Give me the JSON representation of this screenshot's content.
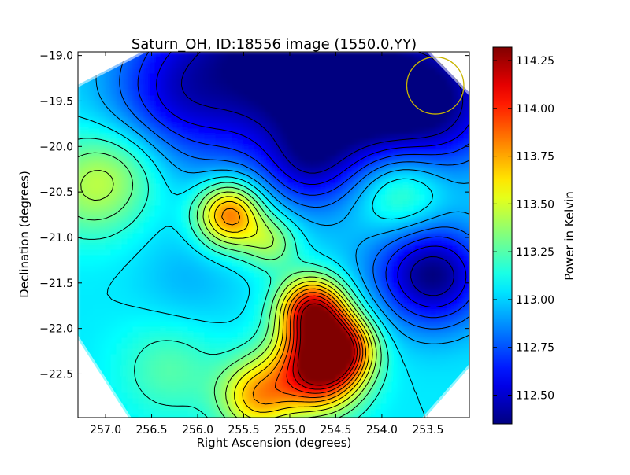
{
  "chart_data": {
    "type": "heatmap",
    "title": "Saturn_OH, ID:18556 image (1550.0,YY)",
    "xlabel": "Right Ascension (degrees)",
    "ylabel": "Declination (degrees)",
    "x_inverted": true,
    "xlim": [
      257.3,
      253.05
    ],
    "ylim": [
      -22.98,
      -18.96
    ],
    "x_ticks": [
      257.0,
      256.5,
      256.0,
      255.5,
      255.0,
      254.5,
      254.0,
      253.5
    ],
    "x_tick_labels": [
      "257.0",
      "256.5",
      "256.0",
      "255.5",
      "255.0",
      "254.5",
      "254.0",
      "253.5"
    ],
    "y_ticks": [
      -19.0,
      -19.5,
      -20.0,
      -20.5,
      -21.0,
      -21.5,
      -22.0,
      -22.5
    ],
    "y_tick_labels": [
      "−19.0",
      "−19.5",
      "−20.0",
      "−20.5",
      "−21.0",
      "−21.5",
      "−22.0",
      "−22.5"
    ],
    "colormap": "jet",
    "contours": true,
    "colorbar": {
      "label": "Power in Kelvin",
      "range": [
        112.35,
        114.32
      ],
      "ticks": [
        112.5,
        112.75,
        113.0,
        113.25,
        113.5,
        113.75,
        114.0,
        114.25
      ],
      "tick_labels": [
        "112.50",
        "112.75",
        "113.00",
        "113.25",
        "113.50",
        "113.75",
        "114.00",
        "114.25"
      ]
    },
    "background_level": 113.05,
    "field_features": [
      {
        "ra": 255.2,
        "dec": -18.96,
        "value": 112.38,
        "width": 1.2
      },
      {
        "ra": 254.15,
        "dec": -19.55,
        "value": 112.5,
        "width": 0.95
      },
      {
        "ra": 253.35,
        "dec": -19.5,
        "value": 112.6,
        "width": 0.7
      },
      {
        "ra": 256.3,
        "dec": -19.45,
        "value": 112.75,
        "width": 0.7
      },
      {
        "ra": 254.8,
        "dec": -20.2,
        "value": 112.8,
        "width": 0.45
      },
      {
        "ra": 253.35,
        "dec": -21.45,
        "value": 112.6,
        "width": 0.55
      },
      {
        "ra": 253.65,
        "dec": -21.35,
        "value": 112.75,
        "width": 0.6
      },
      {
        "ra": 257.15,
        "dec": -20.45,
        "value": 113.4,
        "width": 0.55
      },
      {
        "ra": 256.75,
        "dec": -20.2,
        "value": 113.2,
        "width": 0.5
      },
      {
        "ra": 253.8,
        "dec": -20.5,
        "value": 113.45,
        "width": 0.5
      },
      {
        "ra": 255.65,
        "dec": -20.75,
        "value": 113.9,
        "width": 0.35
      },
      {
        "ra": 255.2,
        "dec": -21.05,
        "value": 113.4,
        "width": 0.3
      },
      {
        "ra": 254.75,
        "dec": -21.8,
        "value": 114.15,
        "width": 0.35
      },
      {
        "ra": 254.7,
        "dec": -22.45,
        "value": 114.25,
        "width": 0.45
      },
      {
        "ra": 254.45,
        "dec": -22.2,
        "value": 113.95,
        "width": 0.35
      },
      {
        "ra": 255.35,
        "dec": -22.75,
        "value": 113.7,
        "width": 0.4
      },
      {
        "ra": 256.3,
        "dec": -22.45,
        "value": 113.25,
        "width": 0.55
      },
      {
        "ra": 256.1,
        "dec": -21.5,
        "value": 112.95,
        "width": 0.55
      }
    ],
    "circle_marker": {
      "ra": 253.42,
      "dec": -19.33,
      "radius_deg": 0.31,
      "color": "#c8b400"
    }
  }
}
